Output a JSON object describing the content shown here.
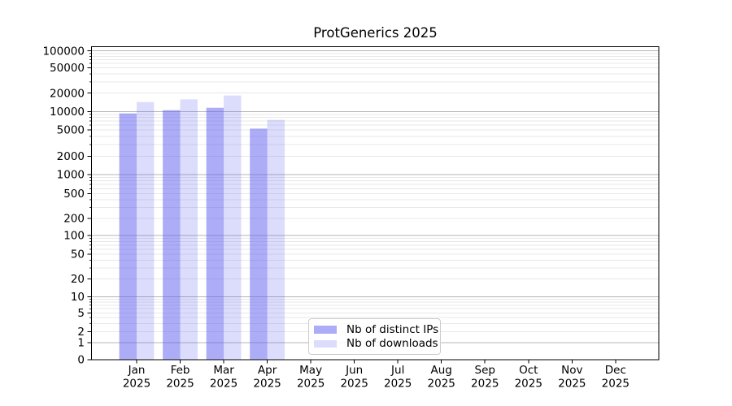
{
  "chart_data": {
    "type": "bar",
    "title": "ProtGenerics 2025",
    "x_axis": {
      "categories": [
        "Jan",
        "Feb",
        "Mar",
        "Apr",
        "May",
        "Jun",
        "Jul",
        "Aug",
        "Sep",
        "Oct",
        "Nov",
        "Dec"
      ],
      "year": "2025"
    },
    "y_axis": {
      "scale": "symlog",
      "ticks": [
        0,
        1,
        2,
        5,
        10,
        20,
        50,
        100,
        200,
        500,
        1000,
        2000,
        5000,
        10000,
        20000,
        50000,
        100000
      ],
      "ylim": [
        0,
        117000
      ],
      "grid": "on"
    },
    "series": [
      {
        "name": "Nb of distinct IPs",
        "color": "#6060f0",
        "fill_opacity": 0.52,
        "legend_color": "#acacf7",
        "values": [
          9300,
          10500,
          11500,
          5250,
          null,
          null,
          null,
          null,
          null,
          null,
          null,
          null
        ]
      },
      {
        "name": "Nb of downloads",
        "color": "#6060f0",
        "fill_opacity": 0.22,
        "legend_color": "#dcdcfb",
        "values": [
          14300,
          15800,
          18300,
          7300,
          null,
          null,
          null,
          null,
          null,
          null,
          null,
          null
        ]
      }
    ],
    "legend": {
      "position": "lower center"
    },
    "colors": {
      "grid_major": "#b5b5b5",
      "grid_minor": "#e8e8e8",
      "spine": "#000000"
    }
  }
}
